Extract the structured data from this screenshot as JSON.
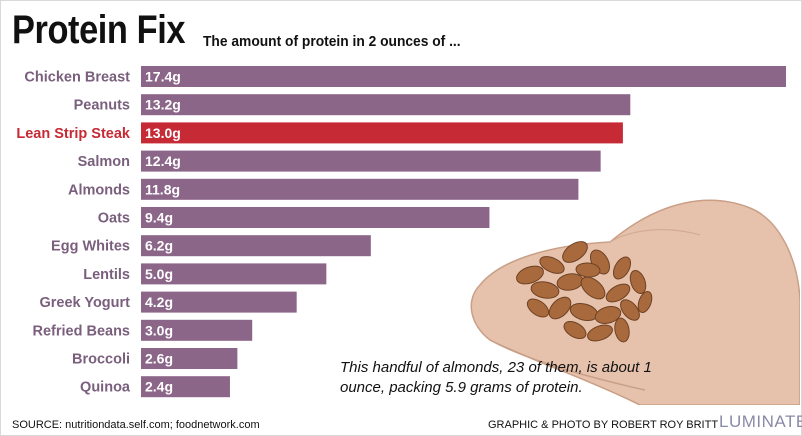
{
  "header": {
    "title": "Protein Fix",
    "subtitle": "The amount of protein in 2 ounces of ..."
  },
  "chart_data": {
    "type": "bar",
    "orientation": "horizontal",
    "categories": [
      "Chicken Breast",
      "Peanuts",
      "Lean Strip Steak",
      "Salmon",
      "Almonds",
      "Oats",
      "Egg Whites",
      "Lentils",
      "Greek Yogurt",
      "Refried Beans",
      "Broccoli",
      "Quinoa"
    ],
    "values": [
      17.4,
      13.2,
      13.0,
      12.4,
      11.8,
      9.4,
      6.2,
      5.0,
      4.2,
      3.0,
      2.6,
      2.4
    ],
    "value_labels": [
      "17.4g",
      "13.2g",
      "13.0g",
      "12.4g",
      "11.8g",
      "9.4g",
      "6.2g",
      "5.0g",
      "4.2g",
      "3.0g",
      "2.6g",
      "2.4g"
    ],
    "highlight_category": "Lean Strip Steak",
    "grid": false,
    "colors": {
      "bar": "#8c6689",
      "highlight": "#c62a35",
      "label": "#7a5f7d",
      "highlight_label": "#c62a35"
    }
  },
  "caption": "This handful of almonds, 23 of them, is about 1 ounce, packing 5.9 grams of protein.",
  "footer": {
    "source": "SOURCE: nutritiondata.self.com; foodnetwork.com",
    "credit": "GRAPHIC & PHOTO BY ROBERT ROY BRITT",
    "brand": "LUMINATE"
  }
}
